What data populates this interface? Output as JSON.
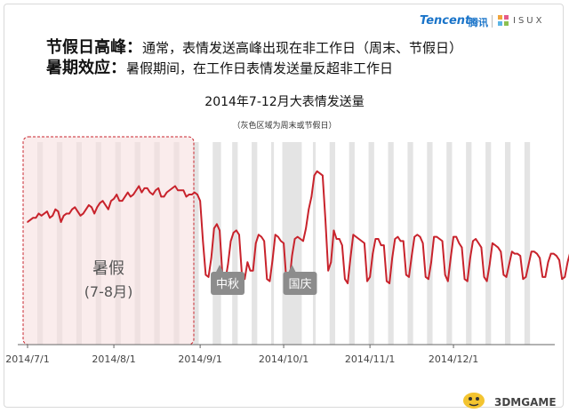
{
  "header": {
    "line1_strong": "节假日高峰：",
    "line1_text": "通常，表情发送高峰出现在非工作日（周末、节假日）",
    "line2_strong": "暑期效应：",
    "line2_text": "暑假期间，在工作日表情发送量反超非工作日"
  },
  "logo": {
    "tencent": "Tencent",
    "tencent_cn": "腾讯",
    "isux": "ISUX",
    "brand_color": "#1a74c9"
  },
  "watermark": "3DMGAME",
  "chart_data": {
    "type": "line",
    "title": "2014年7-12月大表情发送量",
    "subtitle": "（灰色区域为周末或节假日）",
    "xlabel": "",
    "ylabel": "",
    "x_ticks": [
      "2014/7/1",
      "2014/8/1",
      "2014/9/1",
      "2014/10/1",
      "2014/11/1",
      "2014/12/1"
    ],
    "x_range": [
      "2014-07-01",
      "2014-12-31"
    ],
    "ylim": [
      0,
      100
    ],
    "grid": false,
    "legend": "none",
    "line_color": "#c8232c",
    "shade_color": "#e4e4e4",
    "summer_box_color": "#f6e0e0",
    "summer_box_border": "#c8232c",
    "label_box_color": "#8c8c8c",
    "annotations": [
      {
        "text": "暑假",
        "text2": "(7-8月)",
        "date": "2014-07-31"
      },
      {
        "text": "中秋",
        "date": "2014-09-08"
      },
      {
        "text": "国庆",
        "date": "2014-10-04"
      }
    ],
    "series": [
      {
        "values": [
          58,
          59,
          60,
          60,
          62,
          61,
          62,
          63,
          60,
          61,
          64,
          63,
          58,
          61,
          62,
          62,
          64,
          65,
          63,
          61,
          62,
          64,
          66,
          65,
          62,
          65,
          67,
          68,
          66,
          64,
          68,
          69,
          71,
          68,
          68,
          70,
          72,
          70,
          71,
          73,
          75,
          72,
          74,
          74,
          72,
          71,
          73,
          74,
          70,
          70,
          72,
          73,
          74,
          75,
          73,
          73,
          73,
          70,
          71,
          71,
          72,
          71,
          68,
          49,
          33,
          32,
          41,
          55,
          57,
          54,
          33,
          30,
          38,
          49,
          53,
          54,
          52,
          33,
          31,
          39,
          35,
          35,
          48,
          52,
          51,
          49,
          31,
          30,
          40,
          52,
          51,
          49,
          48,
          30,
          29,
          42,
          50,
          51,
          50,
          49,
          55,
          64,
          70,
          80,
          82,
          81,
          80,
          59,
          35,
          39,
          54,
          50,
          50,
          47,
          31,
          29,
          41,
          52,
          51,
          50,
          49,
          48,
          30,
          32,
          43,
          50,
          50,
          47,
          47,
          30,
          29,
          41,
          50,
          51,
          49,
          49,
          33,
          32,
          42,
          51,
          52,
          51,
          48,
          32,
          31,
          39,
          51,
          51,
          50,
          49,
          33,
          30,
          41,
          51,
          51,
          48,
          46,
          31,
          30,
          41,
          49,
          50,
          48,
          46,
          32,
          30,
          38,
          48,
          47,
          46,
          44,
          33,
          32,
          38,
          44,
          43,
          43,
          42,
          31,
          32,
          38,
          44,
          44,
          43,
          41,
          32,
          32,
          39,
          43,
          43,
          42,
          40,
          31,
          32,
          39,
          44,
          43,
          42,
          43,
          33,
          34,
          44
        ]
      }
    ]
  }
}
